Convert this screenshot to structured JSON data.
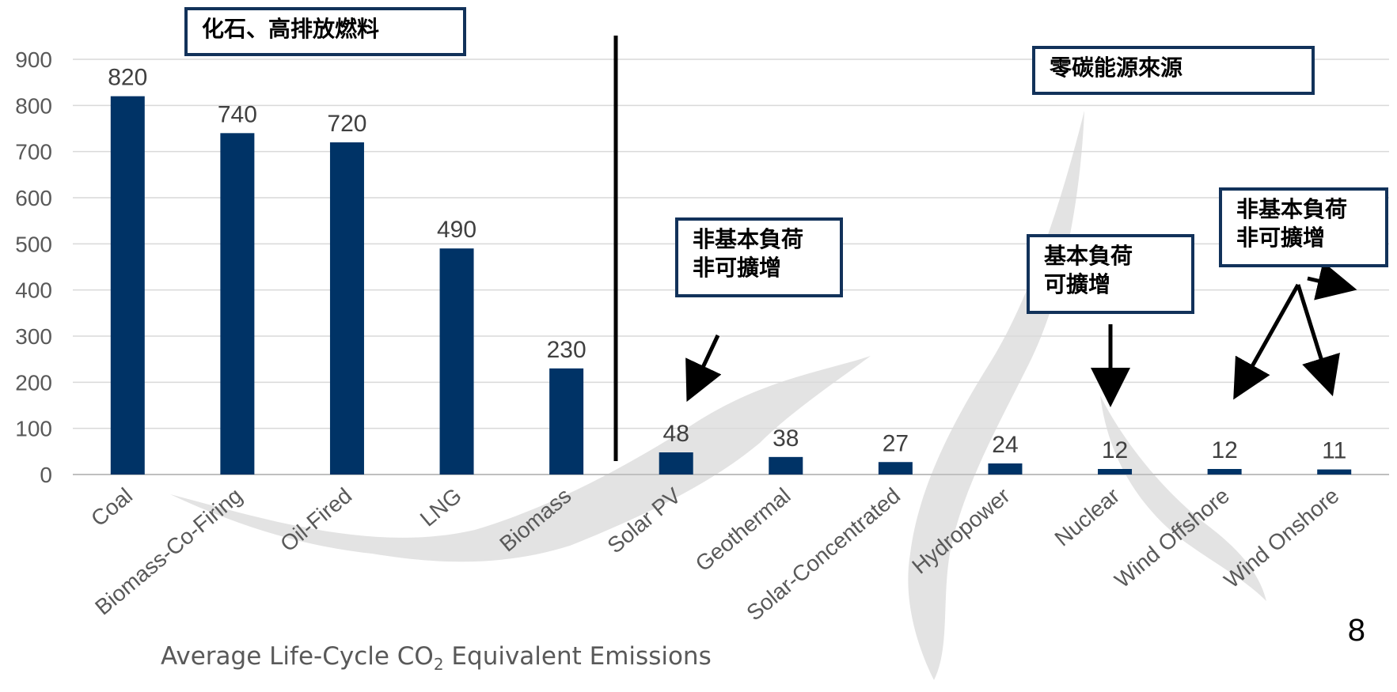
{
  "chart_data": {
    "type": "bar",
    "categories": [
      "Coal",
      "Biomass-Co-Firing",
      "Oil-Fired",
      "LNG",
      "Biomass",
      "Solar PV",
      "Geothermal",
      "Solar-Concentrated",
      "Hydropower",
      "Nuclear",
      "Wind Offshore",
      "Wind Onshore"
    ],
    "values": [
      820,
      740,
      720,
      490,
      230,
      48,
      38,
      27,
      24,
      12,
      12,
      11
    ],
    "ylim": [
      0,
      900
    ],
    "yticks": [
      0,
      100,
      200,
      300,
      400,
      500,
      600,
      700,
      800,
      900
    ],
    "grid": true,
    "bar_color": "#003366",
    "xlabel_prefix": "Average Life-Cycle CO",
    "xlabel_sub": "2",
    "xlabel_suffix": " Equivalent Emissions"
  },
  "annotations": {
    "fossil_label": "化石、高排放燃料",
    "zero_carbon_label": "零碳能源來源",
    "solar_note": "非基本負荷\n非可擴增",
    "nuclear_note": "基本負荷\n可擴增",
    "wind_note": "非基本負荷\n非可擴增"
  },
  "colors": {
    "box_border": "#12325a",
    "watermark": "#e3e3e3"
  },
  "page_number": "8"
}
